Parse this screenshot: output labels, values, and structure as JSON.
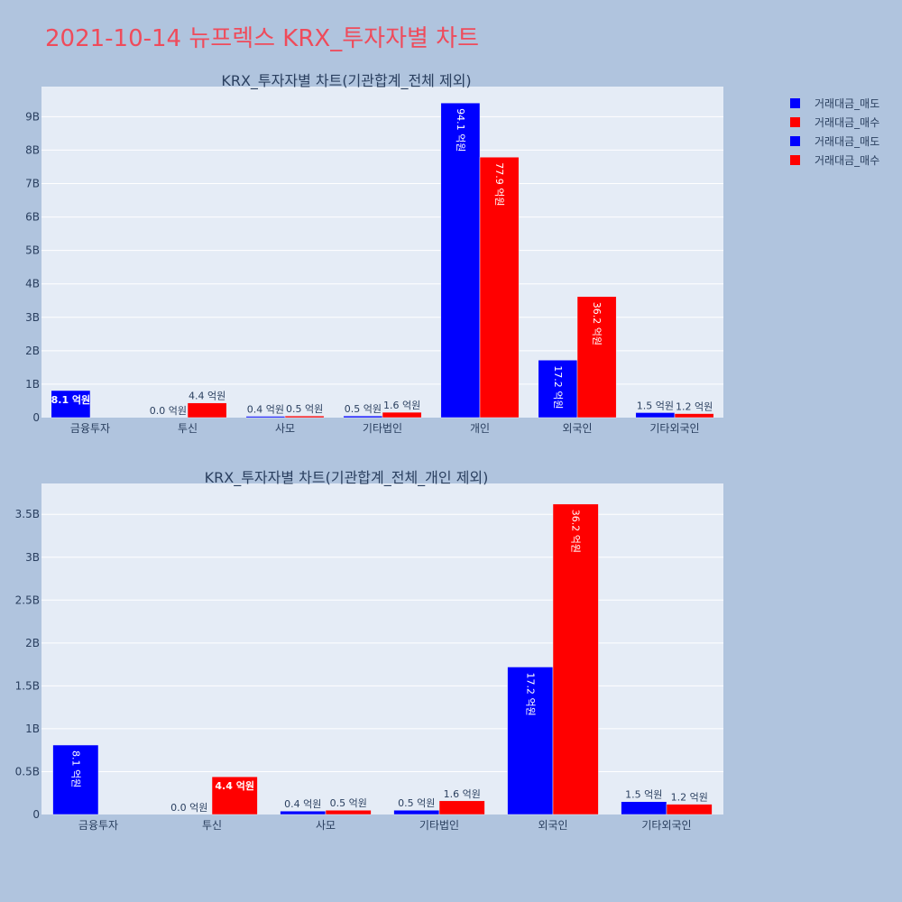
{
  "page_title": "2021-10-14 뉴프렉스 KRX_투자자별 차트",
  "colors": {
    "background": "#b0c4de",
    "plot_bg": "#e5ecf6",
    "sell": "#0000ff",
    "buy": "#ff0000",
    "title": "#ef4b5b",
    "text": "#2a3f5f"
  },
  "legend": [
    {
      "name": "거래대금_매도",
      "color": "#0000ff"
    },
    {
      "name": "거래대금_매수",
      "color": "#ff0000"
    },
    {
      "name": "거래대금_매도",
      "color": "#0000ff"
    },
    {
      "name": "거래대금_매수",
      "color": "#ff0000"
    }
  ],
  "chart_data": [
    {
      "type": "bar",
      "title": "KRX_투자자별 차트(기관합계_전체 제외)",
      "categories": [
        "금융투자",
        "투신",
        "사모",
        "기타법인",
        "개인",
        "외국인",
        "기타외국인"
      ],
      "ylim": [
        0,
        9.9
      ],
      "yticks": [
        0,
        1,
        2,
        3,
        4,
        5,
        6,
        7,
        8,
        9
      ],
      "ytick_labels": [
        "0",
        "1B",
        "2B",
        "3B",
        "4B",
        "5B",
        "6B",
        "7B",
        "8B",
        "9B"
      ],
      "grid": true,
      "legend_position": "right",
      "series": [
        {
          "name": "거래대금_매도",
          "color": "#0000ff",
          "values": [
            0.81,
            0.0,
            0.04,
            0.05,
            9.41,
            1.72,
            0.15
          ],
          "labels": [
            "8.1 억원",
            "0.0 억원",
            "0.4 억원",
            "0.5 억원",
            "94.1 억원",
            "17.2 억원",
            "1.5 억원"
          ]
        },
        {
          "name": "거래대금_매수",
          "color": "#ff0000",
          "values": [
            0.0,
            0.44,
            0.05,
            0.16,
            7.79,
            3.62,
            0.12
          ],
          "labels": [
            "",
            "4.4 억원",
            "0.5 억원",
            "1.6 억원",
            "77.9 억원",
            "36.2 억원",
            "1.2 억원"
          ]
        }
      ]
    },
    {
      "type": "bar",
      "title": "KRX_투자자별 차트(기관합계_전체_개인 제외)",
      "categories": [
        "금융투자",
        "투신",
        "사모",
        "기타법인",
        "외국인",
        "기타외국인"
      ],
      "ylim": [
        0,
        3.86
      ],
      "yticks": [
        0,
        0.5,
        1,
        1.5,
        2,
        2.5,
        3,
        3.5
      ],
      "ytick_labels": [
        "0",
        "0.5B",
        "1B",
        "1.5B",
        "2B",
        "2.5B",
        "3B",
        "3.5B"
      ],
      "grid": true,
      "series": [
        {
          "name": "거래대금_매도",
          "color": "#0000ff",
          "values": [
            0.81,
            0.0,
            0.04,
            0.05,
            1.72,
            0.15
          ],
          "labels": [
            "8.1 억원",
            "0.0 억원",
            "0.4 억원",
            "0.5 억원",
            "17.2 억원",
            "1.5 억원"
          ]
        },
        {
          "name": "거래대금_매수",
          "color": "#ff0000",
          "values": [
            0.0,
            0.44,
            0.05,
            0.16,
            3.62,
            0.12
          ],
          "labels": [
            "",
            "4.4 억원",
            "0.5 억원",
            "1.6 억원",
            "36.2 억원",
            "1.2 억원"
          ]
        }
      ]
    }
  ]
}
